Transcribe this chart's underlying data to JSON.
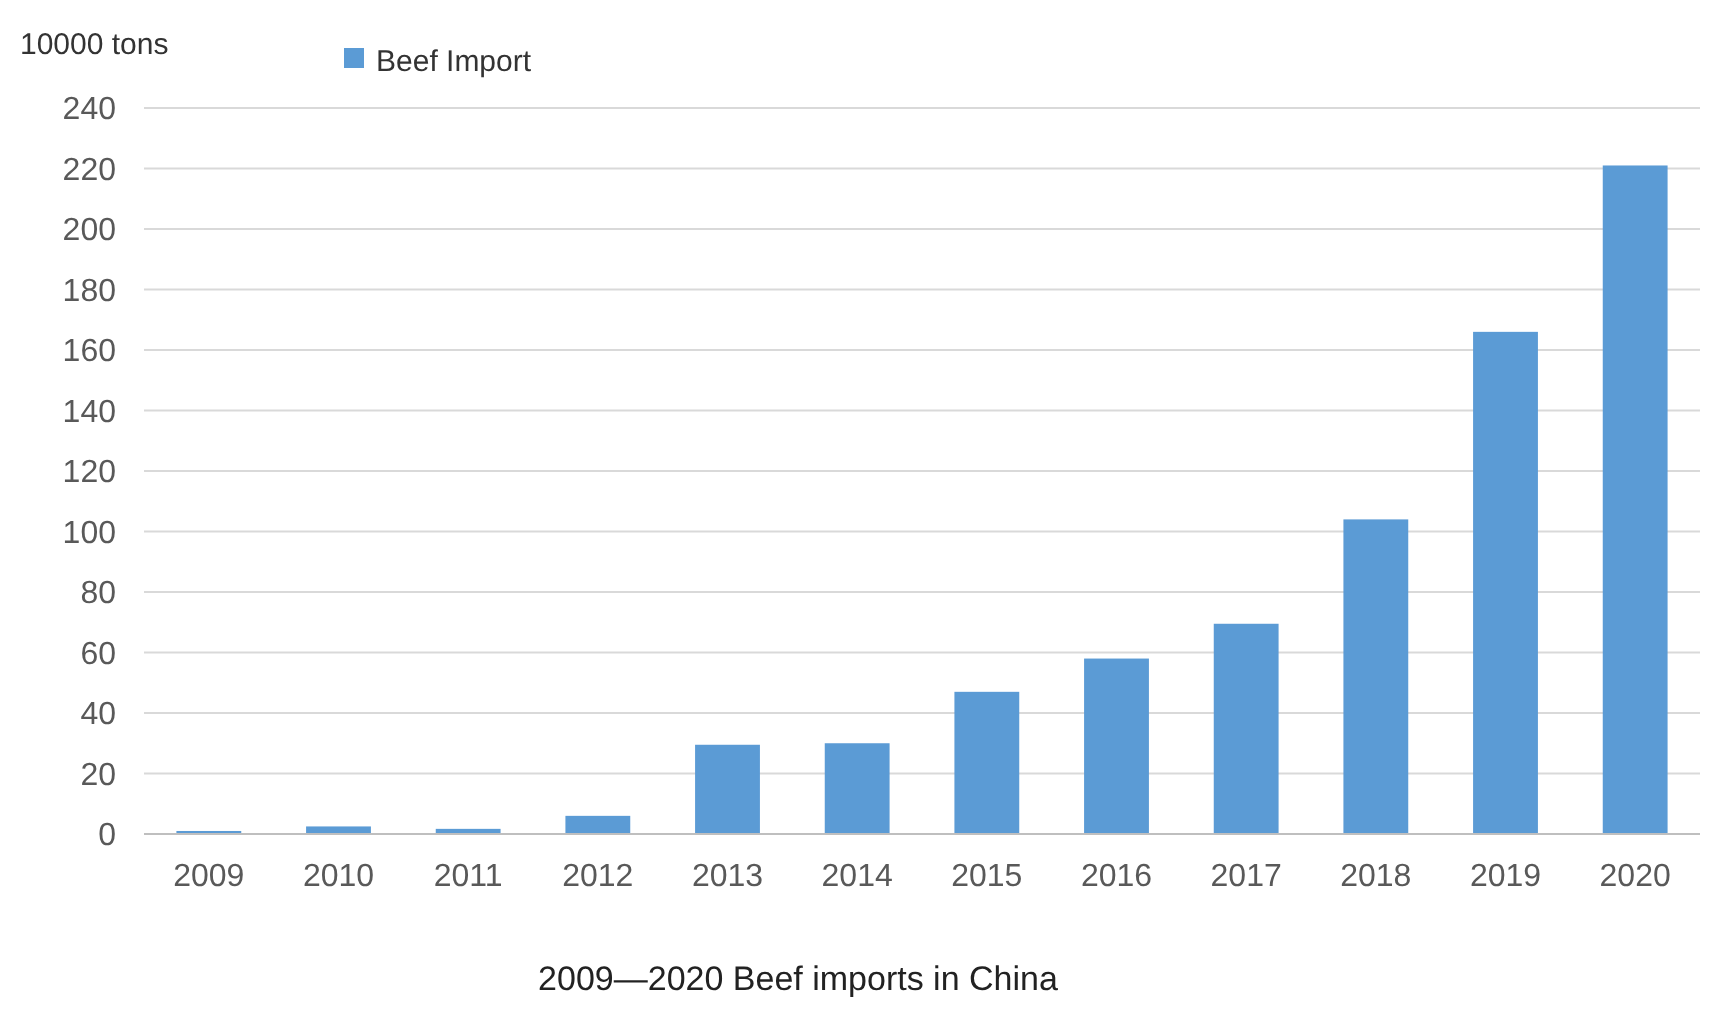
{
  "chart_data": {
    "type": "bar",
    "title": "2009—2020 Beef imports in China",
    "ylabel": "10000 tons",
    "categories": [
      "2009",
      "2010",
      "2011",
      "2012",
      "2013",
      "2014",
      "2015",
      "2016",
      "2017",
      "2018",
      "2019",
      "2020"
    ],
    "series": [
      {
        "name": "Beef Import",
        "color": "#5b9bd5",
        "values": [
          1,
          2.5,
          1.7,
          6,
          29.5,
          30,
          47,
          58,
          69.5,
          104,
          166,
          221
        ]
      }
    ],
    "ylim": [
      0,
      240
    ],
    "yticks": [
      0,
      20,
      40,
      60,
      80,
      100,
      120,
      140,
      160,
      180,
      200,
      220,
      240
    ],
    "grid": "y",
    "legend": "top left"
  }
}
